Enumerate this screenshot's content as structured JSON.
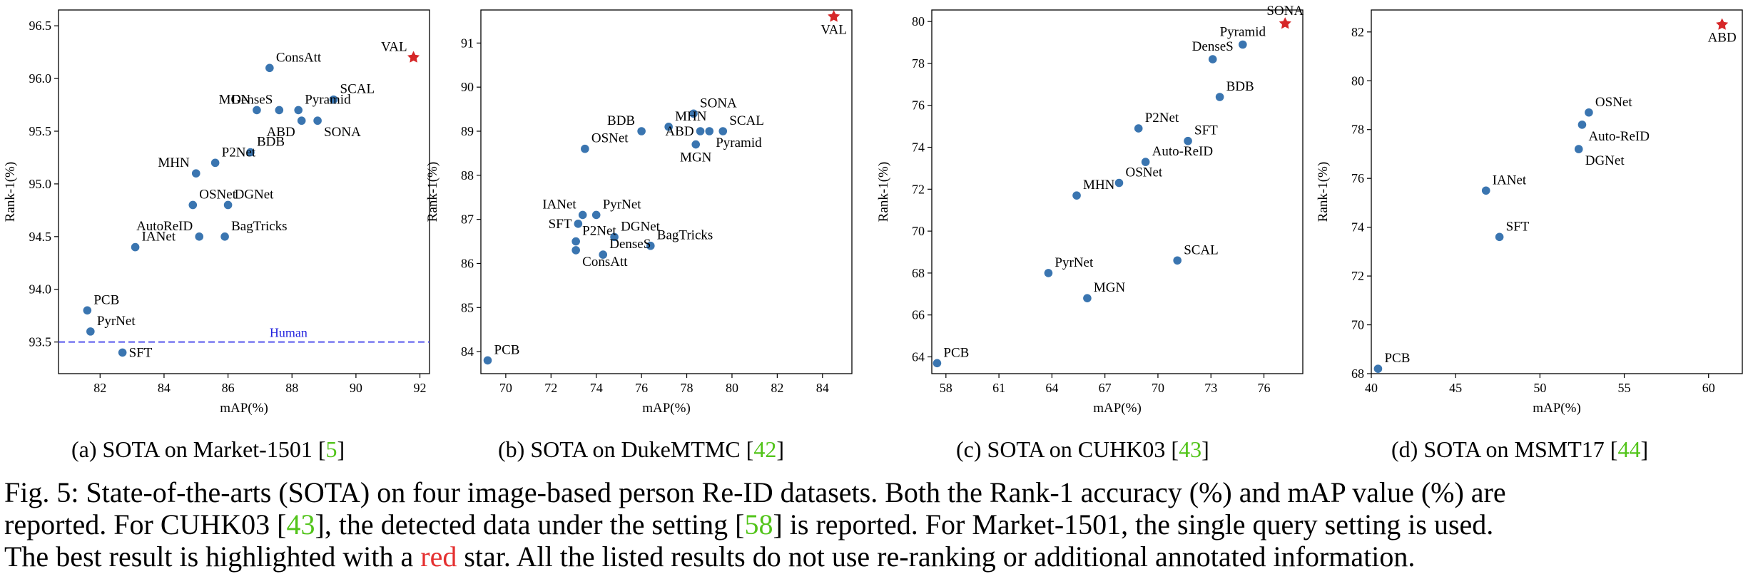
{
  "colors": {
    "point": "#3a75b0",
    "best": "#d62728",
    "human": "#5555ee",
    "ref": "#52c41a",
    "red": "#e53030"
  },
  "chart_data": [
    {
      "type": "scatter",
      "xlabel": "mAP(%)",
      "ylabel": "Rank-1(%)",
      "xlim": [
        80.7,
        92.3
      ],
      "ylim": [
        93.2,
        96.65
      ],
      "xticks": [
        82,
        84,
        86,
        88,
        90,
        92
      ],
      "yticks": [
        93.5,
        94.0,
        94.5,
        95.0,
        95.5,
        96.0,
        96.5
      ],
      "ytick_decimals": 1,
      "points": [
        {
          "label": "VAL",
          "x": 91.8,
          "y": 96.2,
          "best": true,
          "lpos": "top-left"
        },
        {
          "label": "ConsAtt",
          "x": 87.3,
          "y": 96.1,
          "lpos": "top-right"
        },
        {
          "label": "SCAL",
          "x": 89.3,
          "y": 95.8,
          "lpos": "top-right"
        },
        {
          "label": "MGN",
          "x": 86.9,
          "y": 95.7,
          "lpos": "top-left"
        },
        {
          "label": "DenseS",
          "x": 87.6,
          "y": 95.7,
          "lpos": "top-left"
        },
        {
          "label": "Pyramid",
          "x": 88.2,
          "y": 95.7,
          "lpos": "top-right"
        },
        {
          "label": "ABD",
          "x": 88.3,
          "y": 95.6,
          "lpos": "bottom-left"
        },
        {
          "label": "SONA",
          "x": 88.8,
          "y": 95.6,
          "lpos": "bottom-right"
        },
        {
          "label": "BDB",
          "x": 86.7,
          "y": 95.3,
          "lpos": "top-right"
        },
        {
          "label": "P2Net",
          "x": 85.6,
          "y": 95.2,
          "lpos": "top-right"
        },
        {
          "label": "MHN",
          "x": 85.0,
          "y": 95.1,
          "lpos": "top-left"
        },
        {
          "label": "OSNet",
          "x": 84.9,
          "y": 94.8,
          "lpos": "top-right"
        },
        {
          "label": "DGNet",
          "x": 86.0,
          "y": 94.8,
          "lpos": "top-right"
        },
        {
          "label": "AutoReID",
          "x": 85.1,
          "y": 94.5,
          "lpos": "top-left"
        },
        {
          "label": "BagTricks",
          "x": 85.9,
          "y": 94.5,
          "lpos": "top-right"
        },
        {
          "label": "IANet",
          "x": 83.1,
          "y": 94.4,
          "lpos": "top-right"
        },
        {
          "label": "PCB",
          "x": 81.6,
          "y": 93.8,
          "lpos": "top-right"
        },
        {
          "label": "PyrNet",
          "x": 81.7,
          "y": 93.6,
          "lpos": "top-right"
        },
        {
          "label": "SFT",
          "x": 82.7,
          "y": 93.4,
          "lpos": "right"
        }
      ],
      "hline": {
        "y": 93.5,
        "label": "Human"
      },
      "caption_prefix": "(a) SOTA on Market-1501 [",
      "caption_ref": "5",
      "caption_suffix": "]"
    },
    {
      "type": "scatter",
      "xlabel": "mAP(%)",
      "ylabel": "Rank-1(%)",
      "xlim": [
        68.9,
        85.3
      ],
      "ylim": [
        83.5,
        91.75
      ],
      "xticks": [
        70,
        72,
        74,
        76,
        78,
        80,
        82,
        84
      ],
      "yticks": [
        84,
        85,
        86,
        87,
        88,
        89,
        90,
        91
      ],
      "ytick_decimals": 0,
      "points": [
        {
          "label": "VAL",
          "x": 84.5,
          "y": 91.6,
          "best": true,
          "lpos": "bottom"
        },
        {
          "label": "SONA",
          "x": 78.3,
          "y": 89.4,
          "lpos": "top-right"
        },
        {
          "label": "MHN",
          "x": 77.2,
          "y": 89.1,
          "lpos": "top-right"
        },
        {
          "label": "BDB",
          "x": 76.0,
          "y": 89.0,
          "lpos": "top-left"
        },
        {
          "label": "SCAL",
          "x": 79.6,
          "y": 89.0,
          "lpos": "top-right"
        },
        {
          "label": "ABD",
          "x": 78.6,
          "y": 89.0,
          "lpos": "left"
        },
        {
          "label": "Pyramid",
          "x": 79.0,
          "y": 89.0,
          "lpos": "bottom-right"
        },
        {
          "label": "MGN",
          "x": 78.4,
          "y": 88.7,
          "lpos": "bottom"
        },
        {
          "label": "OSNet",
          "x": 73.5,
          "y": 88.6,
          "lpos": "top-right"
        },
        {
          "label": "IANet",
          "x": 73.4,
          "y": 87.1,
          "lpos": "top-left"
        },
        {
          "label": "PyrNet",
          "x": 74.0,
          "y": 87.1,
          "lpos": "top-right"
        },
        {
          "label": "SFT",
          "x": 73.2,
          "y": 86.9,
          "lpos": "left"
        },
        {
          "label": "DGNet",
          "x": 74.8,
          "y": 86.6,
          "lpos": "top-right"
        },
        {
          "label": "P2Net",
          "x": 73.1,
          "y": 86.5,
          "lpos": "top-right"
        },
        {
          "label": "BagTricks",
          "x": 76.4,
          "y": 86.4,
          "lpos": "top-right"
        },
        {
          "label": "DenseS",
          "x": 74.3,
          "y": 86.2,
          "lpos": "top-right"
        },
        {
          "label": "ConsAtt",
          "x": 73.1,
          "y": 86.3,
          "lpos": "bottom-right"
        },
        {
          "label": "PCB",
          "x": 69.2,
          "y": 83.8,
          "lpos": "top-right"
        }
      ],
      "caption_prefix": "(b) SOTA on DukeMTMC [",
      "caption_ref": "42",
      "caption_suffix": "]"
    },
    {
      "type": "scatter",
      "xlabel": "mAP(%)",
      "ylabel": "Rank-1(%)",
      "xlim": [
        57.2,
        78.2
      ],
      "ylim": [
        63.2,
        80.55
      ],
      "xticks": [
        58,
        61,
        64,
        67,
        70,
        73,
        76
      ],
      "yticks": [
        64,
        66,
        68,
        70,
        72,
        74,
        76,
        78,
        80
      ],
      "ytick_decimals": 0,
      "points": [
        {
          "label": "SONA",
          "x": 77.2,
          "y": 79.9,
          "best": true,
          "lpos": "top"
        },
        {
          "label": "Pyramid",
          "x": 74.8,
          "y": 78.9,
          "lpos": "top"
        },
        {
          "label": "DenseS",
          "x": 73.1,
          "y": 78.2,
          "lpos": "top"
        },
        {
          "label": "BDB",
          "x": 73.5,
          "y": 76.4,
          "lpos": "top-right"
        },
        {
          "label": "P2Net",
          "x": 68.9,
          "y": 74.9,
          "lpos": "top-right"
        },
        {
          "label": "SFT",
          "x": 71.7,
          "y": 74.3,
          "lpos": "top-right"
        },
        {
          "label": "Auto-ReID",
          "x": 69.3,
          "y": 73.3,
          "lpos": "top-right"
        },
        {
          "label": "OSNet",
          "x": 67.8,
          "y": 72.3,
          "lpos": "top-right"
        },
        {
          "label": "MHN",
          "x": 65.4,
          "y": 71.7,
          "lpos": "top-right"
        },
        {
          "label": "SCAL",
          "x": 71.1,
          "y": 68.6,
          "lpos": "top-right"
        },
        {
          "label": "PyrNet",
          "x": 63.8,
          "y": 68.0,
          "lpos": "top-right"
        },
        {
          "label": "MGN",
          "x": 66.0,
          "y": 66.8,
          "lpos": "top-right"
        },
        {
          "label": "PCB",
          "x": 57.5,
          "y": 63.7,
          "lpos": "top-right"
        }
      ],
      "caption_prefix": "(c) SOTA on CUHK03 [",
      "caption_ref": "43",
      "caption_suffix": "]"
    },
    {
      "type": "scatter",
      "xlabel": "mAP(%)",
      "ylabel": "Rank-1(%)",
      "xlim": [
        40.0,
        62.0
      ],
      "ylim": [
        68.0,
        82.9
      ],
      "xticks": [
        40,
        45,
        50,
        55,
        60
      ],
      "yticks": [
        68,
        70,
        72,
        74,
        76,
        78,
        80,
        82
      ],
      "ytick_decimals": 0,
      "points": [
        {
          "label": "ABD",
          "x": 60.8,
          "y": 82.3,
          "best": true,
          "lpos": "bottom"
        },
        {
          "label": "OSNet",
          "x": 52.9,
          "y": 78.7,
          "lpos": "top-right"
        },
        {
          "label": "Auto-ReID",
          "x": 52.5,
          "y": 78.2,
          "lpos": "bottom-right"
        },
        {
          "label": "DGNet",
          "x": 52.3,
          "y": 77.2,
          "lpos": "bottom-right"
        },
        {
          "label": "IANet",
          "x": 46.8,
          "y": 75.5,
          "lpos": "top-right"
        },
        {
          "label": "SFT",
          "x": 47.6,
          "y": 73.6,
          "lpos": "top-right"
        },
        {
          "label": "PCB",
          "x": 40.4,
          "y": 68.2,
          "lpos": "top-right"
        }
      ],
      "caption_prefix": "(d) SOTA on MSMT17 [",
      "caption_ref": "44",
      "caption_suffix": "]"
    }
  ],
  "caption": {
    "line1": "Fig. 5: State-of-the-arts (SOTA) on four image-based person Re-ID datasets. Both the Rank-1 accuracy (%) and mAP value (%) are",
    "line2_a": "reported. For CUHK03 [",
    "line2_ref1": "43",
    "line2_b": "], the detected data under the setting [",
    "line2_ref2": "58",
    "line2_c": "] is reported. For Market-1501, the single query setting is used.",
    "line3_a": "The best result is highlighted with a ",
    "line3_red": "red",
    "line3_b": " star. All the listed results do not use re-ranking or additional annotated information."
  }
}
